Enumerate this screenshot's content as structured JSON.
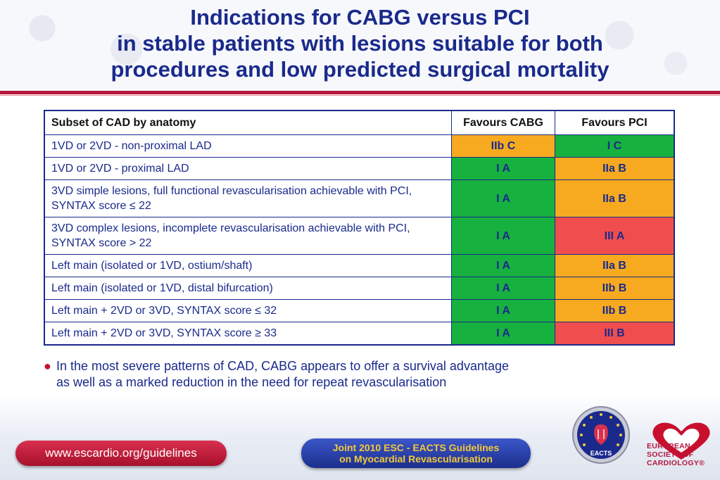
{
  "title": {
    "line1": "Indications for CABG versus PCI",
    "line2": "in stable patients with lesions suitable for both",
    "line3": "procedures and low predicted surgical mortality"
  },
  "colors": {
    "title": "#1a2a8c",
    "rule": "#b7163f",
    "green": "#17b13f",
    "orange": "#f7aa1f",
    "red": "#f04e4e"
  },
  "table": {
    "headers": [
      "Subset of CAD by anatomy",
      "Favours CABG",
      "Favours PCI"
    ],
    "rows": [
      {
        "subset": "1VD or 2VD - non-proximal LAD",
        "cabg": "IIb C",
        "cabg_color": "orange",
        "pci": "I C",
        "pci_color": "green"
      },
      {
        "subset": "1VD or 2VD - proximal LAD",
        "cabg": "I A",
        "cabg_color": "green",
        "pci": "IIa B",
        "pci_color": "orange"
      },
      {
        "subset": "3VD simple lesions, full functional revascularisation achievable with PCI, SYNTAX score ≤ 22",
        "cabg": "I A",
        "cabg_color": "green",
        "pci": "IIa B",
        "pci_color": "orange"
      },
      {
        "subset": "3VD complex lesions, incomplete revascularisation achievable with PCI, SYNTAX score > 22",
        "cabg": "I A",
        "cabg_color": "green",
        "pci": "III A",
        "pci_color": "red"
      },
      {
        "subset": "Left main (isolated or 1VD, ostium/shaft)",
        "cabg": "I A",
        "cabg_color": "green",
        "pci": "IIa B",
        "pci_color": "orange"
      },
      {
        "subset": "Left main (isolated or 1VD, distal bifurcation)",
        "cabg": "I A",
        "cabg_color": "green",
        "pci": "IIb B",
        "pci_color": "orange"
      },
      {
        "subset": "Left main + 2VD or 3VD, SYNTAX score ≤ 32",
        "cabg": "I A",
        "cabg_color": "green",
        "pci": "IIb B",
        "pci_color": "orange"
      },
      {
        "subset": "Left main + 2VD or 3VD, SYNTAX score ≥ 33",
        "cabg": "I A",
        "cabg_color": "green",
        "pci": "III B",
        "pci_color": "red"
      }
    ]
  },
  "bullet": {
    "line1": "In the most severe patterns of CAD, CABG appears to offer a survival advantage",
    "line2": "as well as a marked reduction in the need for repeat revascularisation"
  },
  "footer": {
    "url": "www.escardio.org/guidelines",
    "guidelines_line1": "Joint 2010 ESC - EACTS Guidelines",
    "guidelines_line2": "on Myocardial Revascularisation",
    "eacts_label": "EACTS",
    "esc_line1": "EUROPEAN",
    "esc_line2": "SOCIETY OF",
    "esc_line3": "CARDIOLOGY®",
    "eacts_icon": "eacts-logo",
    "esc_icon": "esc-heart-logo"
  }
}
